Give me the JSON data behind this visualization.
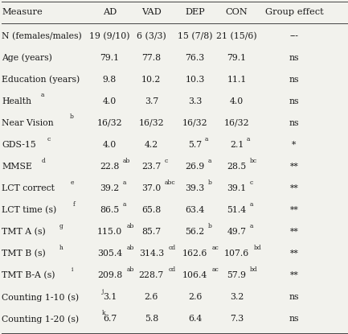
{
  "columns": [
    "Measure",
    "AD",
    "VAD",
    "DEP",
    "CON",
    "Group effect"
  ],
  "rows": [
    {
      "measure": "N (females/males)",
      "msup": "",
      "AD": "19 (9/10)",
      "Asup": "",
      "VAD": "6 (3/3)",
      "Vsup": "",
      "DEP": "15 (7/8)",
      "Dsup": "",
      "CON": "21 (15/6)",
      "Csup": "",
      "eff": "---",
      "esup": ""
    },
    {
      "measure": "Age (years)",
      "msup": "",
      "AD": "79.1",
      "Asup": "",
      "VAD": "77.8",
      "Vsup": "",
      "DEP": "76.3",
      "Dsup": "",
      "CON": "79.1",
      "Csup": "",
      "eff": "ns",
      "esup": ""
    },
    {
      "measure": "Education (years)",
      "msup": "",
      "AD": "9.8",
      "Asup": "",
      "VAD": "10.2",
      "Vsup": "",
      "DEP": "10.3",
      "Dsup": "",
      "CON": "11.1",
      "Csup": "",
      "eff": "ns",
      "esup": ""
    },
    {
      "measure": "Health",
      "msup": "a",
      "AD": "4.0",
      "Asup": "",
      "VAD": "3.7",
      "Vsup": "",
      "DEP": "3.3",
      "Dsup": "",
      "CON": "4.0",
      "Csup": "",
      "eff": "ns",
      "esup": ""
    },
    {
      "measure": "Near Vision",
      "msup": "b",
      "AD": "16/32",
      "Asup": "",
      "VAD": "16/32",
      "Vsup": "",
      "DEP": "16/32",
      "Dsup": "",
      "CON": "16/32",
      "Csup": "",
      "eff": "ns",
      "esup": ""
    },
    {
      "measure": "GDS-15",
      "msup": "c",
      "AD": "4.0",
      "Asup": "",
      "VAD": "4.2",
      "Vsup": "",
      "DEP": "5.7",
      "Dsup": "a",
      "CON": "2.1",
      "Csup": "a",
      "eff": "*",
      "esup": ""
    },
    {
      "measure": "MMSE",
      "msup": "d",
      "AD": "22.8",
      "Asup": "ab",
      "VAD": "23.7",
      "Vsup": "c",
      "DEP": "26.9",
      "Dsup": "a",
      "CON": "28.5",
      "Csup": "bc",
      "eff": "**",
      "esup": ""
    },
    {
      "measure": "LCT correct",
      "msup": "e",
      "AD": "39.2",
      "Asup": "a",
      "VAD": "37.0",
      "Vsup": "abc",
      "DEP": "39.3",
      "Dsup": "b",
      "CON": "39.1",
      "Csup": "c",
      "eff": "**",
      "esup": ""
    },
    {
      "measure": "LCT time (s)",
      "msup": "f",
      "AD": "86.5",
      "Asup": "a",
      "VAD": "65.8",
      "Vsup": "",
      "DEP": "63.4",
      "Dsup": "",
      "CON": "51.4",
      "Csup": "a",
      "eff": "**",
      "esup": ""
    },
    {
      "measure": "TMT A (s)",
      "msup": "g",
      "AD": "115.0",
      "Asup": "ab",
      "VAD": "85.7",
      "Vsup": "",
      "DEP": "56.2",
      "Dsup": "b",
      "CON": "49.7",
      "Csup": "a",
      "eff": "**",
      "esup": ""
    },
    {
      "measure": "TMT B (s)",
      "msup": "h",
      "AD": "305.4",
      "Asup": "ab",
      "VAD": "314.3",
      "Vsup": "cd",
      "DEP": "162.6",
      "Dsup": "ac",
      "CON": "107.6",
      "Csup": "bd",
      "eff": "**",
      "esup": ""
    },
    {
      "measure": "TMT B-A (s)",
      "msup": "i",
      "AD": "209.8",
      "Asup": "ab",
      "VAD": "228.7",
      "Vsup": "cd",
      "DEP": "106.4",
      "Dsup": "ac",
      "CON": "57.9",
      "Csup": "bd",
      "eff": "**",
      "esup": ""
    },
    {
      "measure": "Counting 1-10 (s)",
      "msup": "j",
      "AD": "3.1",
      "Asup": "",
      "VAD": "2.6",
      "Vsup": "",
      "DEP": "2.6",
      "Dsup": "",
      "CON": "3.2",
      "Csup": "",
      "eff": "ns",
      "esup": ""
    },
    {
      "measure": "Counting 1-20 (s)",
      "msup": "k",
      "AD": "6.7",
      "Asup": "",
      "VAD": "5.8",
      "Vsup": "",
      "DEP": "6.4",
      "Dsup": "",
      "CON": "7.3",
      "Csup": "",
      "eff": "ns",
      "esup": ""
    }
  ],
  "bg_color": "#f2f2ed",
  "text_color": "#1a1a1a",
  "font_size": 7.8,
  "sup_font_size": 5.5,
  "header_font_size": 8.2,
  "fig_width": 4.33,
  "fig_height": 4.15,
  "dpi": 100
}
